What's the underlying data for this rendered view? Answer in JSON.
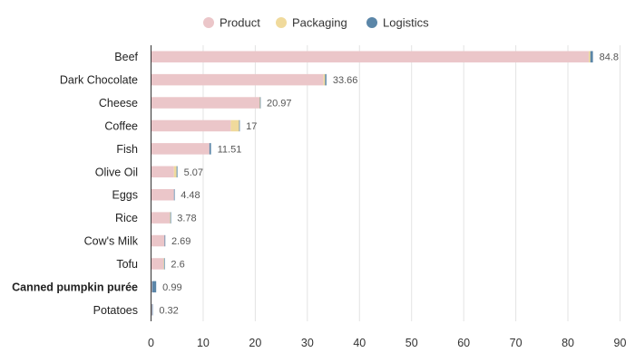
{
  "chart_data": {
    "type": "bar",
    "orientation": "horizontal",
    "stacked": true,
    "title": "",
    "xlabel": "",
    "ylabel": "",
    "xlim": [
      0,
      90
    ],
    "xticks": [
      0,
      10,
      20,
      30,
      40,
      50,
      60,
      70,
      80,
      90
    ],
    "grid": true,
    "legend_position": "top-center",
    "categories": [
      "Beef",
      "Dark Chocolate",
      "Cheese",
      "Coffee",
      "Fish",
      "Olive Oil",
      "Eggs",
      "Rice",
      "Cow's Milk",
      "Tofu",
      "Canned pumpkin purée",
      "Potatoes"
    ],
    "highlight_category": "Canned pumpkin purée",
    "totals": [
      "84.8",
      "33.66",
      "20.97",
      "17",
      "11.51",
      "5.07",
      "4.48",
      "3.78",
      "2.69",
      "2.6",
      "0.99",
      "0.32"
    ],
    "series": [
      {
        "name": "Product",
        "color": "#ebc6c9",
        "values": [
          84.0,
          33.1,
          20.8,
          15.3,
          11.2,
          4.4,
          4.4,
          3.6,
          2.6,
          2.4,
          0.2,
          0.2
        ]
      },
      {
        "name": "Packaging",
        "color": "#f0da9c",
        "values": [
          0.3,
          0.3,
          0.1,
          1.6,
          0.0,
          0.5,
          0.0,
          0.1,
          0.0,
          0.1,
          0.0,
          0.0
        ]
      },
      {
        "name": "Logistics",
        "color": "#5b86a8",
        "values": [
          0.5,
          0.26,
          0.07,
          0.1,
          0.31,
          0.17,
          0.08,
          0.08,
          0.09,
          0.1,
          0.79,
          0.12
        ]
      }
    ]
  }
}
